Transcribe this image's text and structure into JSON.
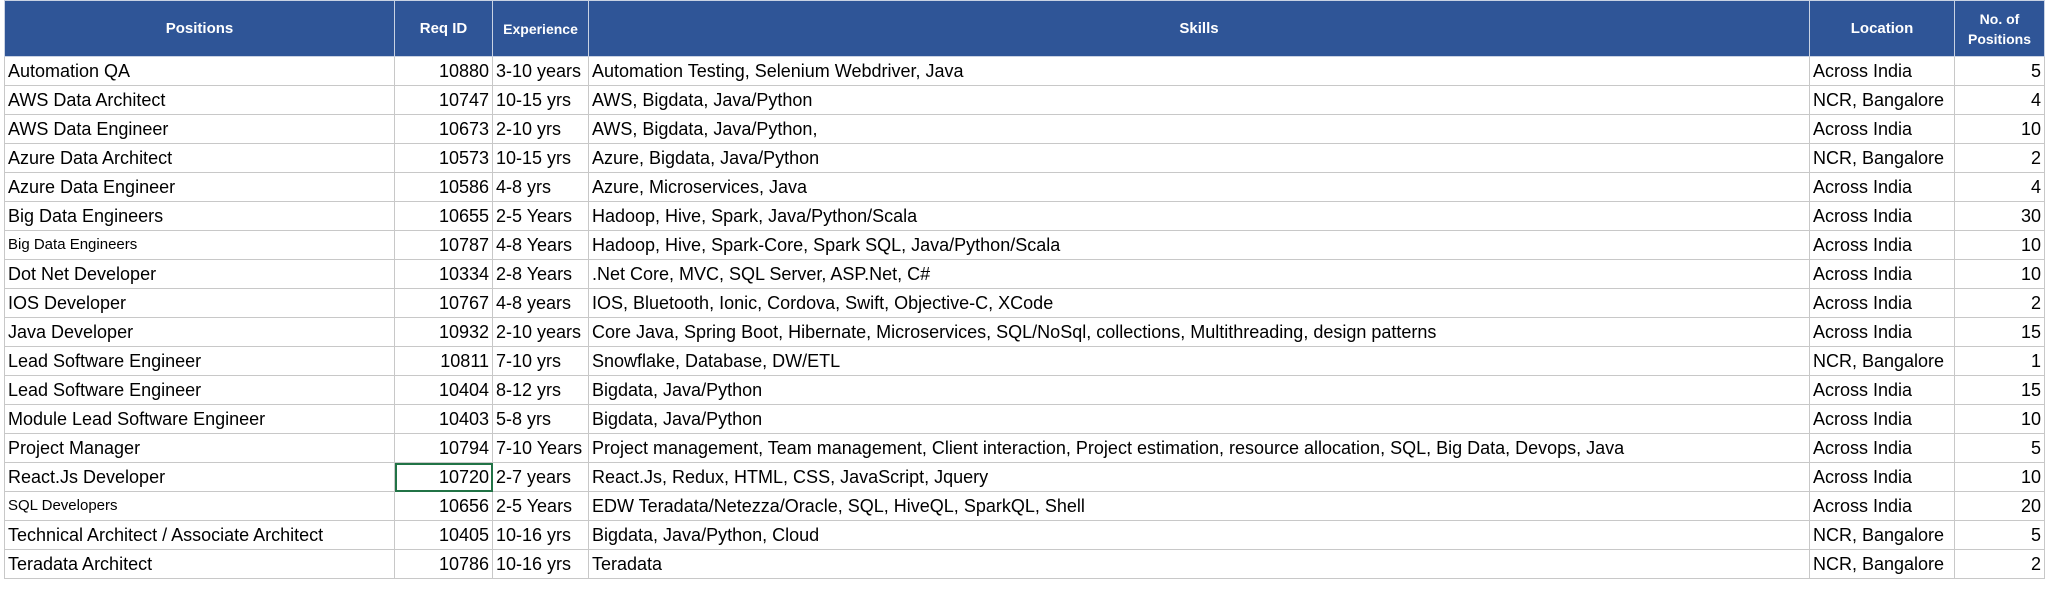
{
  "headers": {
    "position": "Positions",
    "req_id": "Req ID",
    "experience": "Experience",
    "skills": "Skills",
    "location": "Location",
    "count": "No. of Positions"
  },
  "rows": [
    {
      "position": "Automation QA",
      "req_id": "10880",
      "experience": "3-10 years",
      "skills": "Automation Testing, Selenium Webdriver, Java",
      "location": "Across India",
      "count": "5"
    },
    {
      "position": "AWS Data Architect",
      "req_id": "10747",
      "experience": "10-15 yrs",
      "skills": "AWS, Bigdata, Java/Python",
      "location": "NCR, Bangalore",
      "count": "4"
    },
    {
      "position": "AWS Data Engineer",
      "req_id": "10673",
      "experience": "2-10 yrs",
      "skills": "AWS, Bigdata, Java/Python,",
      "location": "Across India",
      "count": "10"
    },
    {
      "position": "Azure Data Architect",
      "req_id": "10573",
      "experience": "10-15 yrs",
      "skills": "Azure, Bigdata, Java/Python",
      "location": "NCR, Bangalore",
      "count": "2"
    },
    {
      "position": "Azure Data Engineer",
      "req_id": "10586",
      "experience": "4-8 yrs",
      "skills": "Azure, Microservices, Java",
      "location": "Across India",
      "count": "4"
    },
    {
      "position": "Big Data Engineers",
      "req_id": "10655",
      "experience": "2-5 Years",
      "skills": "Hadoop, Hive, Spark, Java/Python/Scala",
      "location": "Across India",
      "count": "30"
    },
    {
      "position": "Big Data Engineers",
      "req_id": "10787",
      "experience": "4-8 Years",
      "skills": "Hadoop, Hive, Spark-Core, Spark SQL, Java/Python/Scala",
      "location": "Across India",
      "count": "10"
    },
    {
      "position": "Dot Net Developer",
      "req_id": "10334",
      "experience": "2-8 Years",
      "skills": ".Net Core, MVC, SQL Server, ASP.Net, C#",
      "location": "Across India",
      "count": "10"
    },
    {
      "position": "IOS Developer",
      "req_id": "10767",
      "experience": "4-8 years",
      "skills": "IOS, Bluetooth, Ionic, Cordova, Swift, Objective-C, XCode",
      "location": "Across India",
      "count": "2"
    },
    {
      "position": "Java Developer",
      "req_id": "10932",
      "experience": "2-10 years",
      "skills": "Core Java, Spring Boot, Hibernate, Microservices, SQL/NoSql, collections, Multithreading, design patterns",
      "location": "Across India",
      "count": "15"
    },
    {
      "position": "Lead Software Engineer",
      "req_id": "10811",
      "experience": "7-10 yrs",
      "skills": "Snowflake, Database, DW/ETL",
      "location": "NCR, Bangalore",
      "count": "1"
    },
    {
      "position": "Lead Software Engineer",
      "req_id": "10404",
      "experience": "8-12 yrs",
      "skills": "Bigdata, Java/Python",
      "location": "Across India",
      "count": "15"
    },
    {
      "position": "Module Lead Software Engineer",
      "req_id": "10403",
      "experience": "5-8 yrs",
      "skills": "Bigdata, Java/Python",
      "location": "Across India",
      "count": "10"
    },
    {
      "position": "Project Manager",
      "req_id": "10794",
      "experience": "7-10 Years",
      "skills": "Project management, Team management, Client interaction, Project estimation, resource allocation, SQL, Big Data, Devops, Java",
      "location": "Across India",
      "count": "5"
    },
    {
      "position": "React.Js Developer",
      "req_id": "10720",
      "experience": "2-7 years",
      "skills": "React.Js, Redux, HTML, CSS, JavaScript, Jquery",
      "location": "Across India",
      "count": "10"
    },
    {
      "position": "SQL Developers",
      "req_id": "10656",
      "experience": "2-5 Years",
      "skills": "EDW Teradata/Netezza/Oracle, SQL, HiveQL, SparkQL, Shell",
      "location": "Across India",
      "count": "20"
    },
    {
      "position": "Technical Architect / Associate Architect",
      "req_id": "10405",
      "experience": "10-16 yrs",
      "skills": "Bigdata, Java/Python, Cloud",
      "location": "NCR, Bangalore",
      "count": "5"
    },
    {
      "position": "Teradata Architect",
      "req_id": "10786",
      "experience": "10-16 yrs",
      "skills": "Teradata",
      "location": "NCR, Bangalore",
      "count": "2"
    }
  ]
}
